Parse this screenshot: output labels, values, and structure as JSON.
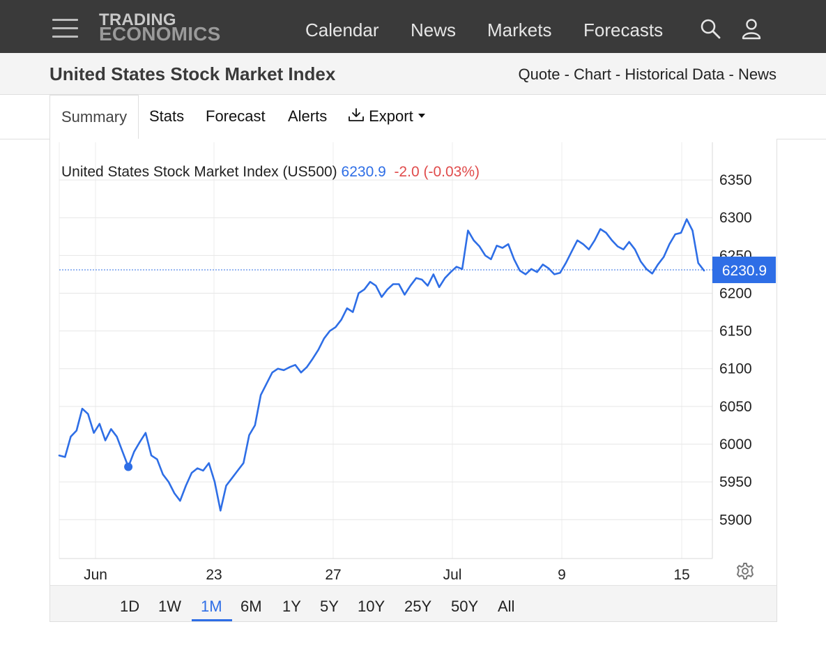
{
  "header": {
    "logo_line1": "TRADING",
    "logo_line2": "ECONOMICS",
    "nav": [
      "Calendar",
      "News",
      "Markets",
      "Forecasts"
    ],
    "icons": [
      "menu-icon",
      "search-icon",
      "user-icon"
    ]
  },
  "title_row": {
    "title": "United States Stock Market Index",
    "links": [
      "Quote",
      "Chart",
      "Historical Data",
      "News"
    ],
    "separator": " - "
  },
  "tabs": {
    "active": "Summary",
    "items": [
      "Stats",
      "Forecast",
      "Alerts"
    ],
    "export_label": "Export"
  },
  "chart": {
    "header_label": "United States Stock Market Index (US500)",
    "price": "6230.9",
    "change": "-2.0 (-0.03%)",
    "last_value_label": "6230.9",
    "colors": {
      "line": "#2e6ee6",
      "change_negative": "#e04b4b",
      "accent": "#2e6ee6"
    }
  },
  "chart_data": {
    "type": "line",
    "ylim": [
      5850,
      6370
    ],
    "y_ticks": [
      5900,
      5950,
      6000,
      6050,
      6100,
      6150,
      6200,
      6250,
      6300,
      6350
    ],
    "x_tick_labels": [
      "Jun",
      "23",
      "27",
      "Jul",
      "9",
      "15"
    ],
    "grid": true,
    "last_value": 6230.9,
    "series": [
      {
        "values": [
          5985,
          5983,
          6010,
          6018,
          6047,
          6040,
          6015,
          6027,
          6005,
          6020,
          6010,
          5990,
          5970,
          5990,
          6003,
          6015,
          5985,
          5980,
          5960,
          5950,
          5935,
          5925,
          5945,
          5962,
          5968,
          5965,
          5975,
          5950,
          5912,
          5945,
          5955,
          5965,
          5975,
          6012,
          6025,
          6065,
          6080,
          6095,
          6100,
          6098,
          6102,
          6105,
          6095,
          6102,
          6113,
          6125,
          6140,
          6150,
          6155,
          6165,
          6180,
          6175,
          6200,
          6205,
          6215,
          6210,
          6195,
          6205,
          6212,
          6212,
          6198,
          6210,
          6220,
          6218,
          6210,
          6225,
          6208,
          6220,
          6228,
          6235,
          6232,
          6283,
          6270,
          6262,
          6250,
          6245,
          6263,
          6260,
          6265,
          6245,
          6230,
          6225,
          6232,
          6228,
          6238,
          6233,
          6225,
          6227,
          6240,
          6255,
          6270,
          6265,
          6258,
          6270,
          6285,
          6280,
          6270,
          6262,
          6258,
          6268,
          6258,
          6242,
          6232,
          6226,
          6238,
          6248,
          6265,
          6278,
          6280,
          6298,
          6283,
          6240,
          6230
        ]
      }
    ]
  },
  "time_ranges": {
    "items": [
      "1D",
      "1W",
      "1M",
      "6M",
      "1Y",
      "5Y",
      "10Y",
      "25Y",
      "50Y",
      "All"
    ],
    "active": "1M"
  }
}
